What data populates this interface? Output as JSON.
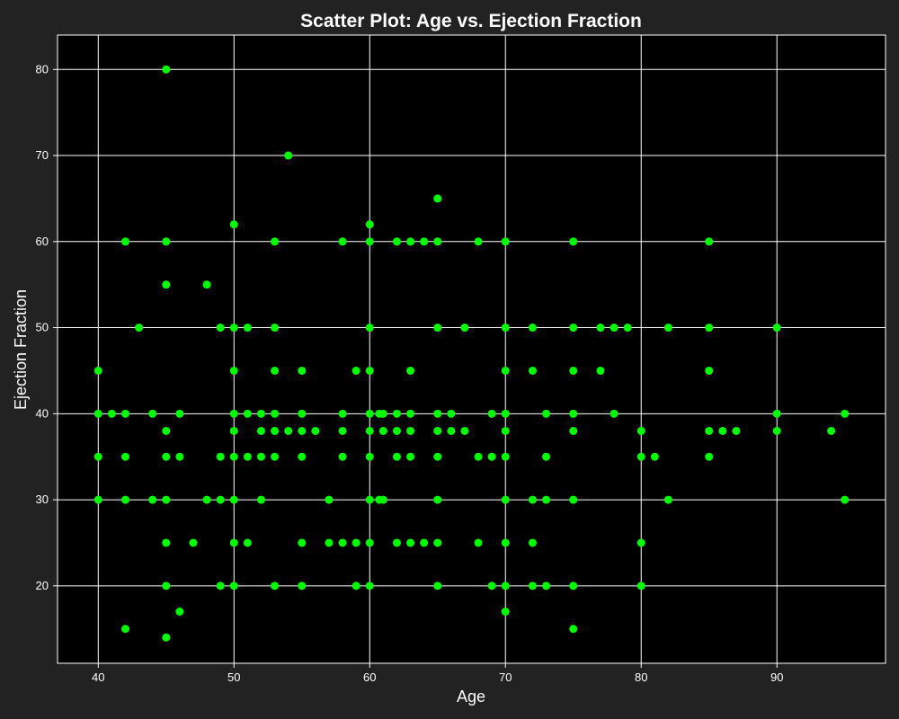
{
  "chart_data": {
    "type": "scatter",
    "title": "Scatter Plot: Age vs. Ejection Fraction",
    "xlabel": "Age",
    "ylabel": "Ejection Fraction",
    "xlim": [
      37,
      98
    ],
    "ylim": [
      11,
      84
    ],
    "xticks": [
      40,
      50,
      60,
      70,
      80,
      90
    ],
    "yticks": [
      20,
      30,
      40,
      50,
      60,
      70,
      80
    ],
    "grid": true,
    "colors": {
      "background": "#222222",
      "plot_area": "#000000",
      "grid": "#ffffff",
      "marker": "#00ff00",
      "text": "#ffffff"
    },
    "points": [
      [
        45,
        80
      ],
      [
        54,
        70
      ],
      [
        65,
        65
      ],
      [
        50,
        62
      ],
      [
        60,
        62
      ],
      [
        42,
        60
      ],
      [
        45,
        60
      ],
      [
        53,
        60
      ],
      [
        58,
        60
      ],
      [
        60,
        60
      ],
      [
        62,
        60
      ],
      [
        63,
        60
      ],
      [
        64,
        60
      ],
      [
        65,
        60
      ],
      [
        68,
        60
      ],
      [
        70,
        60
      ],
      [
        75,
        60
      ],
      [
        85,
        60
      ],
      [
        45,
        55
      ],
      [
        48,
        55
      ],
      [
        43,
        50
      ],
      [
        49,
        50
      ],
      [
        50,
        50
      ],
      [
        51,
        50
      ],
      [
        53,
        50
      ],
      [
        60,
        50
      ],
      [
        65,
        50
      ],
      [
        67,
        50
      ],
      [
        70,
        50
      ],
      [
        72,
        50
      ],
      [
        75,
        50
      ],
      [
        77,
        50
      ],
      [
        78,
        50
      ],
      [
        79,
        50
      ],
      [
        82,
        50
      ],
      [
        85,
        50
      ],
      [
        90,
        50
      ],
      [
        40,
        45
      ],
      [
        50,
        45
      ],
      [
        53,
        45
      ],
      [
        55,
        45
      ],
      [
        59,
        45
      ],
      [
        60,
        45
      ],
      [
        63,
        45
      ],
      [
        70,
        45
      ],
      [
        72,
        45
      ],
      [
        75,
        45
      ],
      [
        77,
        45
      ],
      [
        85,
        45
      ],
      [
        40,
        40
      ],
      [
        41,
        40
      ],
      [
        42,
        40
      ],
      [
        44,
        40
      ],
      [
        46,
        40
      ],
      [
        50,
        40
      ],
      [
        51,
        40
      ],
      [
        52,
        40
      ],
      [
        53,
        40
      ],
      [
        55,
        40
      ],
      [
        58,
        40
      ],
      [
        60,
        40
      ],
      [
        60.7,
        40
      ],
      [
        61,
        40
      ],
      [
        62,
        40
      ],
      [
        63,
        40
      ],
      [
        65,
        40
      ],
      [
        66,
        40
      ],
      [
        69,
        40
      ],
      [
        70,
        40
      ],
      [
        73,
        40
      ],
      [
        75,
        40
      ],
      [
        78,
        40
      ],
      [
        90,
        40
      ],
      [
        95,
        40
      ],
      [
        45,
        38
      ],
      [
        50,
        38
      ],
      [
        52,
        38
      ],
      [
        53,
        38
      ],
      [
        54,
        38
      ],
      [
        55,
        38
      ],
      [
        56,
        38
      ],
      [
        58,
        38
      ],
      [
        60,
        38
      ],
      [
        61,
        38
      ],
      [
        62,
        38
      ],
      [
        63,
        38
      ],
      [
        65,
        38
      ],
      [
        66,
        38
      ],
      [
        67,
        38
      ],
      [
        70,
        38
      ],
      [
        75,
        38
      ],
      [
        80,
        38
      ],
      [
        85,
        38
      ],
      [
        86,
        38
      ],
      [
        87,
        38
      ],
      [
        90,
        38
      ],
      [
        94,
        38
      ],
      [
        40,
        35
      ],
      [
        42,
        35
      ],
      [
        45,
        35
      ],
      [
        46,
        35
      ],
      [
        49,
        35
      ],
      [
        50,
        35
      ],
      [
        51,
        35
      ],
      [
        52,
        35
      ],
      [
        53,
        35
      ],
      [
        55,
        35
      ],
      [
        58,
        35
      ],
      [
        60,
        35
      ],
      [
        62,
        35
      ],
      [
        63,
        35
      ],
      [
        65,
        35
      ],
      [
        68,
        35
      ],
      [
        69,
        35
      ],
      [
        70,
        35
      ],
      [
        73,
        35
      ],
      [
        80,
        35
      ],
      [
        81,
        35
      ],
      [
        85,
        35
      ],
      [
        40,
        30
      ],
      [
        42,
        30
      ],
      [
        44,
        30
      ],
      [
        45,
        30
      ],
      [
        48,
        30
      ],
      [
        49,
        30
      ],
      [
        50,
        30
      ],
      [
        52,
        30
      ],
      [
        57,
        30
      ],
      [
        60,
        30
      ],
      [
        60.7,
        30
      ],
      [
        61,
        30
      ],
      [
        65,
        30
      ],
      [
        70,
        30
      ],
      [
        72,
        30
      ],
      [
        73,
        30
      ],
      [
        75,
        30
      ],
      [
        82,
        30
      ],
      [
        95,
        30
      ],
      [
        45,
        25
      ],
      [
        47,
        25
      ],
      [
        50,
        25
      ],
      [
        51,
        25
      ],
      [
        55,
        25
      ],
      [
        57,
        25
      ],
      [
        58,
        25
      ],
      [
        59,
        25
      ],
      [
        60,
        25
      ],
      [
        62,
        25
      ],
      [
        63,
        25
      ],
      [
        64,
        25
      ],
      [
        65,
        25
      ],
      [
        68,
        25
      ],
      [
        70,
        25
      ],
      [
        72,
        25
      ],
      [
        80,
        25
      ],
      [
        45,
        20
      ],
      [
        49,
        20
      ],
      [
        50,
        20
      ],
      [
        53,
        20
      ],
      [
        55,
        20
      ],
      [
        59,
        20
      ],
      [
        60,
        20
      ],
      [
        65,
        20
      ],
      [
        69,
        20
      ],
      [
        70,
        20
      ],
      [
        72,
        20
      ],
      [
        73,
        20
      ],
      [
        75,
        20
      ],
      [
        80,
        20
      ],
      [
        46,
        17
      ],
      [
        70,
        17
      ],
      [
        42,
        15
      ],
      [
        75,
        15
      ],
      [
        45,
        14
      ]
    ]
  }
}
